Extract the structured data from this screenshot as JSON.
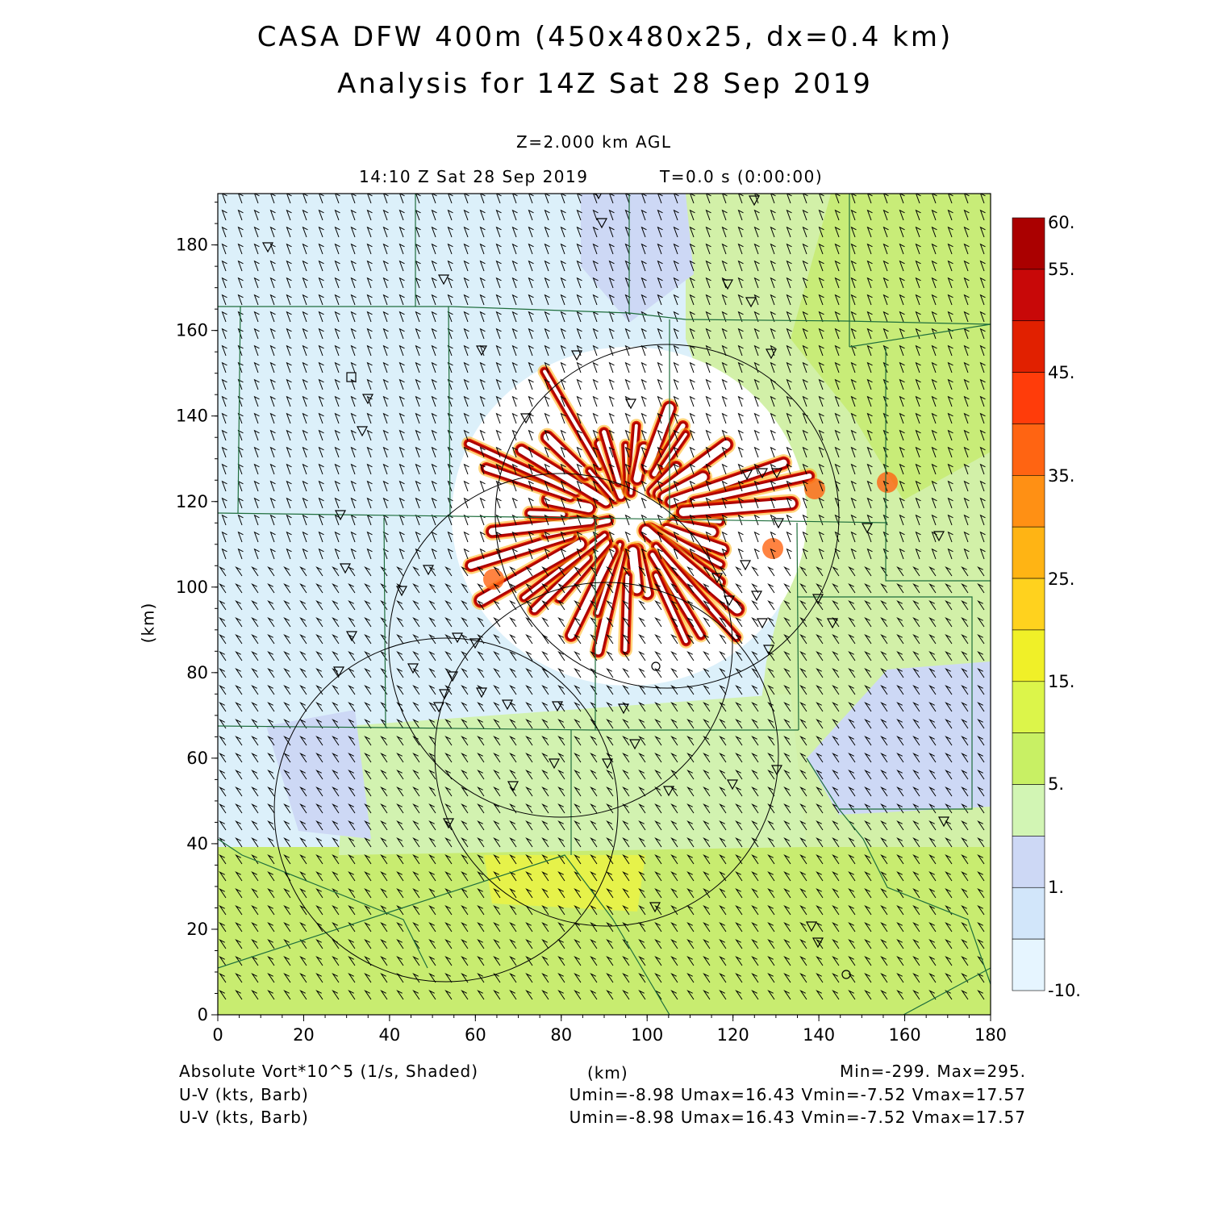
{
  "title_line1": "CASA DFW 400m (450x480x25, dx=0.4 km)",
  "title_line2": "Analysis for 14Z Sat 28 Sep 2019",
  "level_label": "Z=2.000 km AGL",
  "time_label": "14:10 Z Sat 28 Sep 2019",
  "valid_label": "T=0.0 s (0:00:00)",
  "x_axis_label": "(km)",
  "y_axis_label": "(km)",
  "footer": {
    "field_label": "Absolute Vort*10^5 (1/s, Shaded)",
    "range_label": "Min=-299. Max=295.",
    "barb_label_1": "U-V (kts, Barb)",
    "barb_stats_1": "Umin=-8.98 Umax=16.43 Vmin=-7.52 Vmax=17.57",
    "barb_label_2": "U-V (kts, Barb)",
    "barb_stats_2": "Umin=-8.98 Umax=16.43 Vmin=-7.52 Vmax=17.57"
  },
  "colorbar": {
    "labels": [
      "60.",
      "55.",
      "45.",
      "35.",
      "25.",
      "15.",
      "5.",
      "1.",
      "-10."
    ],
    "colors": [
      "#aa0000",
      "#c80808",
      "#e12000",
      "#ff3c0a",
      "#ff6412",
      "#ff9014",
      "#ffb414",
      "#ffd21e",
      "#f0f028",
      "#dcf54a",
      "#c8f064",
      "#d2f5b4",
      "#cdd8f5",
      "#d2e6fa",
      "#e6f5ff"
    ]
  },
  "chart_data": {
    "type": "heatmap",
    "title": "CASA DFW 400m (450x480x25, dx=0.4 km)",
    "xlabel": "(km)",
    "ylabel": "(km)",
    "xlim": [
      0,
      180
    ],
    "ylim": [
      0,
      192
    ],
    "x_ticks": [
      0,
      20,
      40,
      60,
      80,
      100,
      120,
      140,
      160,
      180
    ],
    "y_ticks": [
      0,
      20,
      40,
      60,
      80,
      100,
      120,
      140,
      160,
      180
    ],
    "field": "Absolute Vort*10^5 (1/s)",
    "color_levels": [
      -10,
      1,
      5,
      15,
      25,
      35,
      45,
      55,
      60
    ],
    "min": -299,
    "max": 295,
    "barbs": {
      "field": "U-V (kts)",
      "umin": -8.98,
      "umax": 16.43,
      "vmin": -7.52,
      "vmax": 17.57
    },
    "radar_rings": [
      {
        "center": [
          104,
          115
        ],
        "radius_km": 40
      },
      {
        "center": [
          80,
          90
        ],
        "radius_km": 40
      },
      {
        "center": [
          92,
          60
        ],
        "radius_km": 40
      },
      {
        "center": [
          53,
          47
        ],
        "radius_km": 40
      }
    ]
  }
}
